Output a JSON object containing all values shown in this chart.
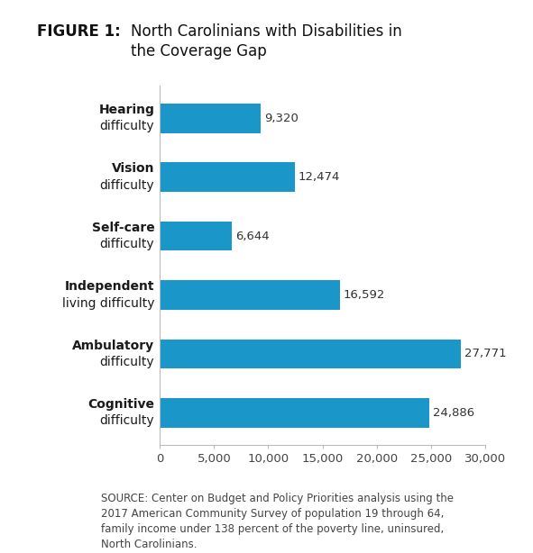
{
  "title_bold": "FIGURE 1:",
  "title_rest_line1": "  North Carolinians with Disabilities in",
  "title_rest_line2": "  the Coverage Gap",
  "categories": [
    [
      "Cognitive",
      "difficulty"
    ],
    [
      "Ambulatory",
      "difficulty"
    ],
    [
      "Independent",
      "living difficulty"
    ],
    [
      "Self-care",
      "difficulty"
    ],
    [
      "Vision",
      "difficulty"
    ],
    [
      "Hearing",
      "difficulty"
    ]
  ],
  "values": [
    24886,
    27771,
    16592,
    6644,
    12474,
    9320
  ],
  "bar_color": "#1a96c8",
  "xlim": [
    0,
    30000
  ],
  "xticks": [
    0,
    5000,
    10000,
    15000,
    20000,
    25000,
    30000
  ],
  "xtick_labels": [
    "0",
    "5,000",
    "10,000",
    "15,000",
    "20,000",
    "25,000",
    "30,000"
  ],
  "value_labels": [
    "24,886",
    "27,771",
    "16,592",
    "6,644",
    "12,474",
    "9,320"
  ],
  "source_text": "SOURCE: Center on Budget and Policy Priorities analysis using the\n2017 American Community Survey of population 19 through 64,\nfamily income under 138 percent of the poverty line, uninsured,\nNorth Carolinians.",
  "background_color": "#ffffff",
  "bar_height": 0.5,
  "label_fontsize": 10,
  "tick_fontsize": 9.5,
  "value_fontsize": 9.5,
  "source_fontsize": 8.5,
  "title_fontsize": 12
}
